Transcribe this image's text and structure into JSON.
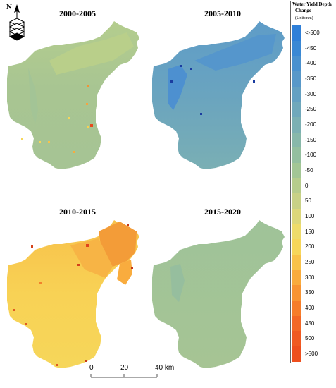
{
  "north_arrow": {
    "label": "N",
    "icon": "north-arrow-icon"
  },
  "panels": [
    {
      "id": "p1",
      "title": "2000-2005"
    },
    {
      "id": "p2",
      "title": "2005-2010"
    },
    {
      "id": "p3",
      "title": "2010-2015"
    },
    {
      "id": "p4",
      "title": "2015-2020"
    }
  ],
  "legend": {
    "title_line1": "Water Yield Depth",
    "title_line2": "Change",
    "unit": "(Unit:mm)",
    "classes": [
      "<-500",
      "-450",
      "-400",
      "-350",
      "-300",
      "-250",
      "-200",
      "-150",
      "-100",
      "-50",
      "0",
      "50",
      "100",
      "150",
      "200",
      "250",
      "300",
      "350",
      "400",
      "450",
      "500",
      ">500"
    ],
    "colors": [
      "#2f7fd8",
      "#3a88d4",
      "#4a91cf",
      "#5898c9",
      "#64a0c2",
      "#70a8bb",
      "#7cb0b3",
      "#88b8aa",
      "#94bf9f",
      "#a3c695",
      "#b6cc8c",
      "#c8d186",
      "#dcd77a",
      "#eedb6a",
      "#f6d65a",
      "#f8c24a",
      "#f9ab3c",
      "#f89432",
      "#f67d2a",
      "#f36826",
      "#f05a22",
      "#ee4f1e"
    ]
  },
  "scale_bar": {
    "labels": [
      "0",
      "20",
      "40 km"
    ]
  }
}
